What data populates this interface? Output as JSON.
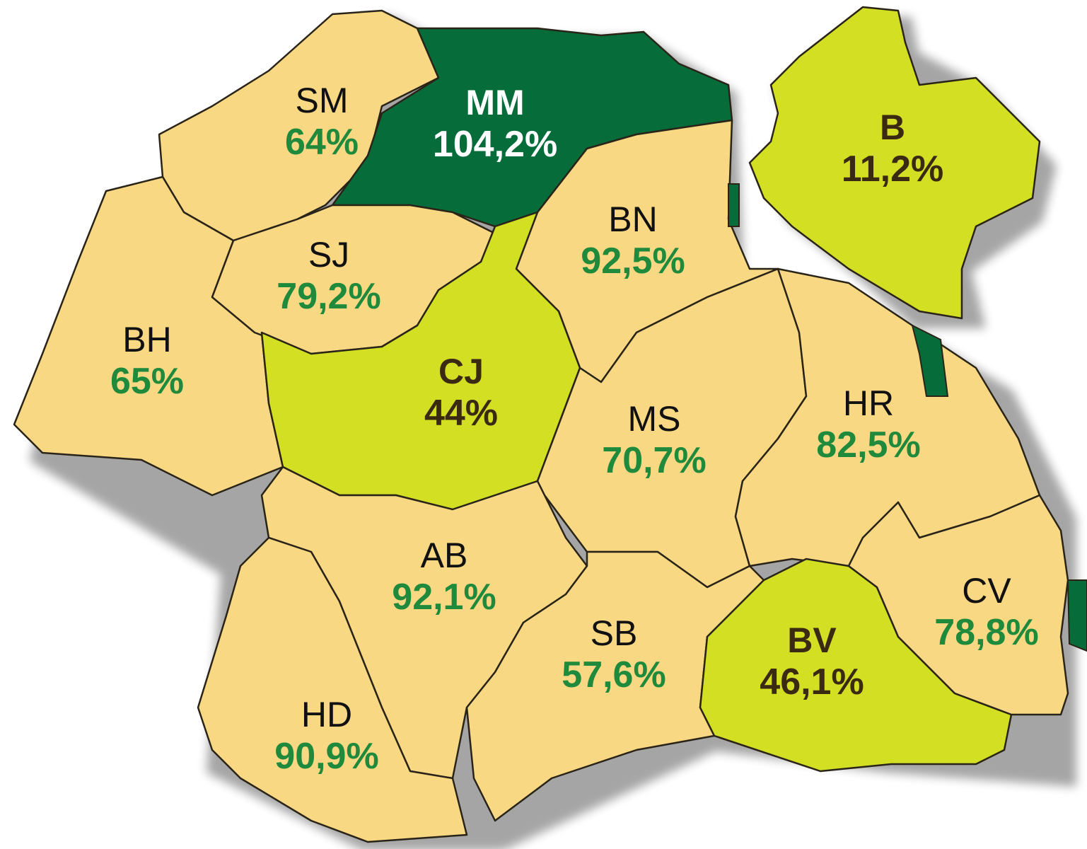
{
  "colors": {
    "land": "#f8d883",
    "lime": "#d3df22",
    "dark_green": "#066c3a",
    "value_green": "#1f8a3c",
    "value_brown": "#3b2a12",
    "value_white": "#ffffff"
  },
  "counties": [
    {
      "code": "SM",
      "value": "64%",
      "fill": "land",
      "code_style": "normal",
      "value_color": "value_green"
    },
    {
      "code": "MM",
      "value": "104,2%",
      "fill": "dark_green",
      "code_style": "bold-white",
      "value_color": "value_white"
    },
    {
      "code": "B",
      "value": "11,2%",
      "fill": "lime",
      "code_style": "bold-brown",
      "value_color": "value_brown"
    },
    {
      "code": "BN",
      "value": "92,5%",
      "fill": "land",
      "code_style": "normal",
      "value_color": "value_green"
    },
    {
      "code": "SJ",
      "value": "79,2%",
      "fill": "land",
      "code_style": "normal",
      "value_color": "value_green"
    },
    {
      "code": "BH",
      "value": "65%",
      "fill": "land",
      "code_style": "normal",
      "value_color": "value_green"
    },
    {
      "code": "CJ",
      "value": "44%",
      "fill": "lime",
      "code_style": "bold-brown",
      "value_color": "value_brown"
    },
    {
      "code": "MS",
      "value": "70,7%",
      "fill": "land",
      "code_style": "normal",
      "value_color": "value_green"
    },
    {
      "code": "HR",
      "value": "82,5%",
      "fill": "land",
      "code_style": "normal",
      "value_color": "value_green"
    },
    {
      "code": "AB",
      "value": "92,1%",
      "fill": "land",
      "code_style": "normal",
      "value_color": "value_green"
    },
    {
      "code": "CV",
      "value": "78,8%",
      "fill": "land",
      "code_style": "normal",
      "value_color": "value_green"
    },
    {
      "code": "SB",
      "value": "57,6%",
      "fill": "land",
      "code_style": "normal",
      "value_color": "value_green"
    },
    {
      "code": "BV",
      "value": "46,1%",
      "fill": "lime",
      "code_style": "bold-brown",
      "value_color": "value_brown"
    },
    {
      "code": "HD",
      "value": "90,9%",
      "fill": "land",
      "code_style": "normal",
      "value_color": "value_green"
    }
  ]
}
